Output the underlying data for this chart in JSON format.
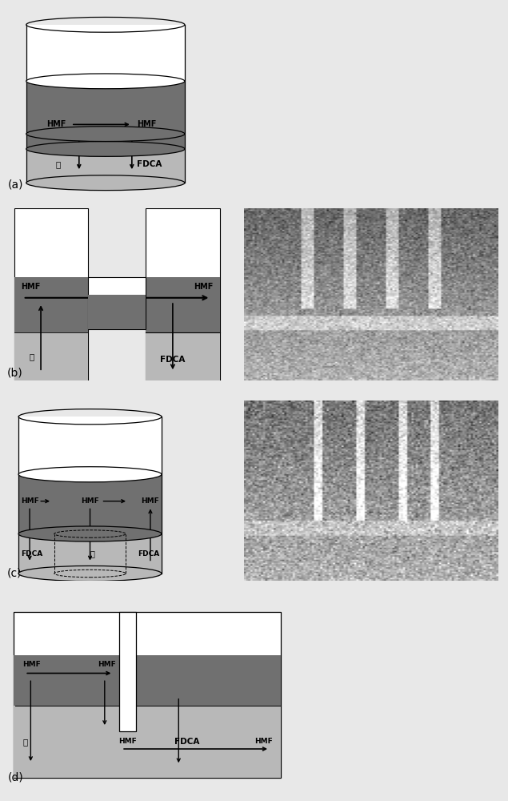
{
  "bg_color": "#e8e8e8",
  "dark_layer": "#707070",
  "mid_layer": "#909090",
  "light_layer": "#b8b8b8",
  "white": "#ffffff",
  "black": "#000000",
  "label_a": "(a)",
  "label_b": "(b)",
  "label_c": "(c)",
  "label_d": "(d)",
  "hmf": "HMF",
  "fdca": "FDCA",
  "sugar": "糖",
  "photo_b_mean": 0.6,
  "photo_b_std": 0.1,
  "photo_c_mean": 0.55,
  "photo_c_std": 0.12
}
